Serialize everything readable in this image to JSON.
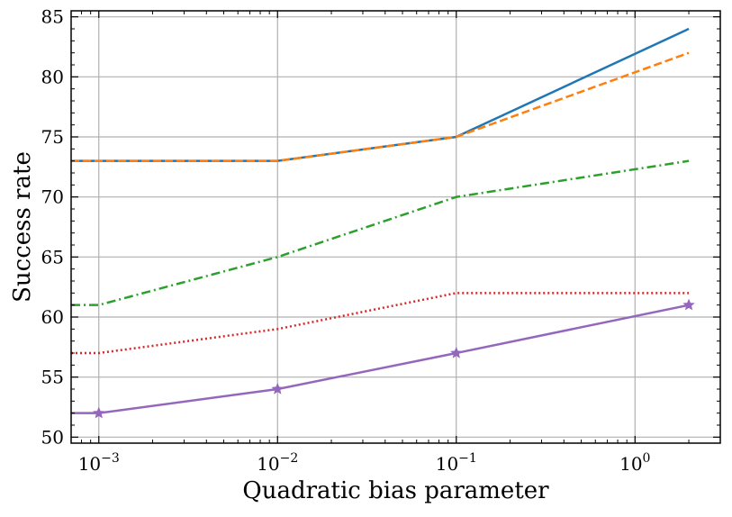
{
  "chart_data": {
    "type": "line",
    "title": "",
    "xlabel": "Quadratic bias parameter",
    "ylabel": "Success rate",
    "xscale": "log",
    "xlim": [
      0.0007,
      3.0
    ],
    "ylim": [
      49.5,
      85.5
    ],
    "x": [
      0.0007,
      0.001,
      0.01,
      0.1,
      2.0
    ],
    "xticks": [
      {
        "value": 0.001,
        "base": "10",
        "exp": "−3"
      },
      {
        "value": 0.01,
        "base": "10",
        "exp": "−2"
      },
      {
        "value": 0.1,
        "base": "10",
        "exp": "−1"
      },
      {
        "value": 1,
        "base": "10",
        "exp": "0"
      }
    ],
    "yticks": [
      50,
      55,
      60,
      65,
      70,
      75,
      80,
      85
    ],
    "grid": true,
    "series": [
      {
        "values": [
          73,
          73,
          73,
          75,
          84
        ],
        "color": "#1f77b4",
        "style": "solid",
        "marker": "none"
      },
      {
        "values": [
          73,
          73,
          73,
          75,
          82
        ],
        "color": "#ff7f0e",
        "style": "dashed",
        "marker": "none"
      },
      {
        "values": [
          61,
          61,
          65,
          70,
          73
        ],
        "color": "#2ca02c",
        "style": "dashdot",
        "marker": "none"
      },
      {
        "values": [
          57,
          57,
          59,
          62,
          62
        ],
        "color": "#d62728",
        "style": "dotted",
        "marker": "none"
      },
      {
        "values": [
          52,
          52,
          54,
          57,
          61
        ],
        "color": "#9467bd",
        "style": "solid",
        "marker": "star",
        "marker_at": [
          1,
          2,
          3,
          4
        ]
      }
    ]
  }
}
